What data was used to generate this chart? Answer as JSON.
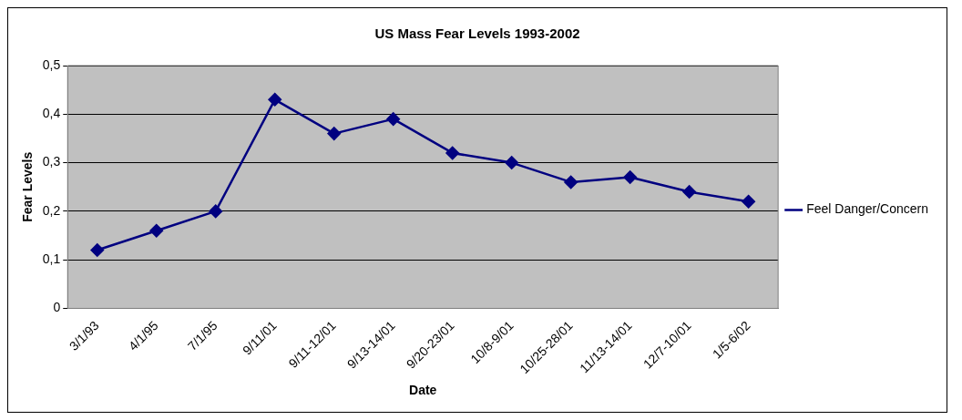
{
  "chart_data": {
    "type": "line",
    "title": "US Mass Fear Levels 1993-2002",
    "xlabel": "Date",
    "ylabel": "Fear Levels",
    "categories": [
      "3/1/93",
      "4/1/95",
      "7/1/95",
      "9/11/01",
      "9/11-12/01",
      "9/13-14/01",
      "9/20-23/01",
      "10/8-9/01",
      "10/25-28/01",
      "11/13-14/01",
      "12/7-10/01",
      "1/5-6/02"
    ],
    "series": [
      {
        "name": "Feel Danger/Concern",
        "color": "#000080",
        "values": [
          0.12,
          0.16,
          0.2,
          0.43,
          0.36,
          0.39,
          0.32,
          0.3,
          0.26,
          0.27,
          0.24,
          0.22
        ]
      }
    ],
    "ylim": [
      0,
      0.5
    ],
    "yticks": [
      0,
      {
        "value": 0.1,
        "label": "0,1"
      },
      {
        "value": 0.2,
        "label": "0,2"
      },
      {
        "value": 0.3,
        "label": "0,3"
      },
      {
        "value": 0.4,
        "label": "0,4"
      },
      {
        "value": 0.5,
        "label": "0,5"
      }
    ],
    "grid": "y",
    "legend": "right",
    "marker": "diamond",
    "line_style": "solid"
  }
}
